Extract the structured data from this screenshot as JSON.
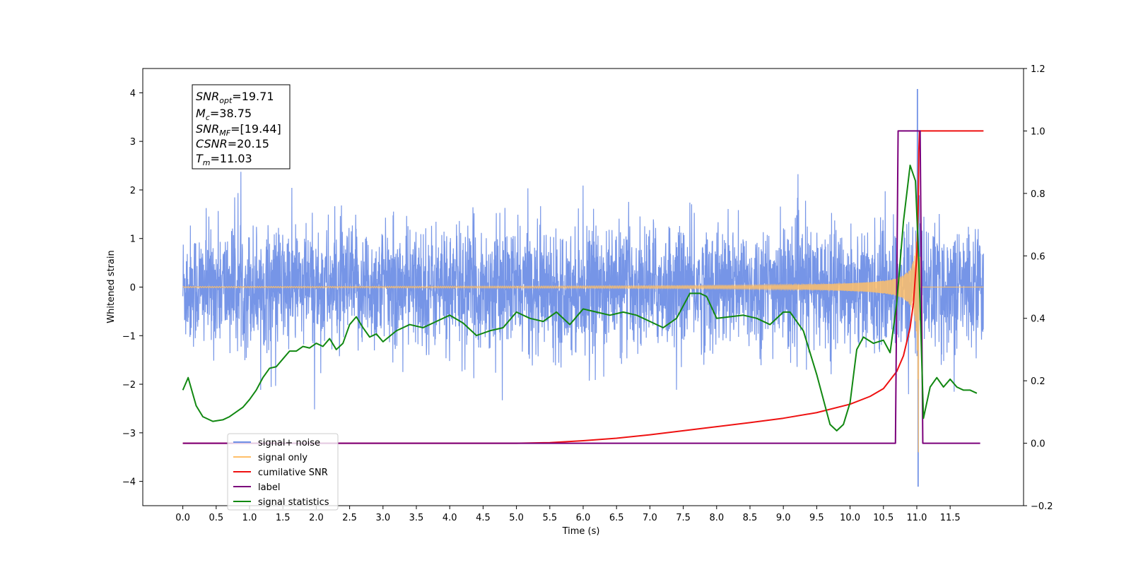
{
  "chart_data": {
    "type": "line",
    "xlabel": "Time (s)",
    "ylabel": "Whitened strain",
    "xlim": [
      -0.6,
      12.6
    ],
    "ylim_left": [
      -4.5,
      4.5
    ],
    "ylim_right": [
      -0.2,
      1.2
    ],
    "x_ticks": [
      0.0,
      0.5,
      1.0,
      1.5,
      2.0,
      2.5,
      3.0,
      3.5,
      4.0,
      4.5,
      5.0,
      5.5,
      6.0,
      6.5,
      7.0,
      7.5,
      8.0,
      8.5,
      9.0,
      9.5,
      10.0,
      10.5,
      11.0,
      11.5
    ],
    "x_tick_labels": [
      "0.0",
      "0.5",
      "1.0",
      "1.5",
      "2.0",
      "2.5",
      "3.0",
      "3.5",
      "4.0",
      "4.5",
      "5.0",
      "5.5",
      "6.0",
      "6.5",
      "7.0",
      "7.5",
      "8.0",
      "8.5",
      "9.0",
      "9.5",
      "10.0",
      "10.5",
      "11.0",
      "11.5"
    ],
    "y_left_ticks": [
      -4,
      -3,
      -2,
      -1,
      0,
      1,
      2,
      3,
      4
    ],
    "y_left_tick_labels": [
      "−4",
      "−3",
      "−2",
      "−1",
      "0",
      "1",
      "2",
      "3",
      "4"
    ],
    "y_right_ticks": [
      -0.2,
      0.0,
      0.2,
      0.4,
      0.6,
      0.8,
      1.0,
      1.2
    ],
    "y_right_tick_labels": [
      "−0.2",
      "0.0",
      "0.2",
      "0.4",
      "0.6",
      "0.8",
      "1.0",
      "1.2"
    ],
    "grid": false,
    "legend_position": "bottom-left",
    "series": [
      {
        "name": "signal+ noise",
        "axis": "left",
        "color": "#6f8fe6",
        "description_of_shape": "dense noise spanning about -1.5 to 1.5 with spikes up to 2.6 and down to -2.8, peak 4.07 and -4.1 near t=11.0",
        "x_range": [
          0.0,
          12.0
        ]
      },
      {
        "name": "signal only",
        "axis": "left",
        "color": "#ffbf69",
        "chirp": {
          "t_merge": 11.03,
          "peak_amplitude": 3.4,
          "x_range": [
            0.0,
            12.0
          ]
        }
      },
      {
        "name": "cumilative SNR",
        "axis": "right",
        "color": "#ee1111",
        "x": [
          0.0,
          1.0,
          2.0,
          3.0,
          4.0,
          5.0,
          5.5,
          6.0,
          6.5,
          7.0,
          7.5,
          8.0,
          8.5,
          9.0,
          9.5,
          10.0,
          10.3,
          10.5,
          10.7,
          10.8,
          10.9,
          10.95,
          11.0,
          11.02,
          11.03,
          11.04,
          12.0
        ],
        "values": [
          0.0,
          0.0,
          0.0,
          0.0,
          0.0,
          0.0,
          0.002,
          0.008,
          0.016,
          0.027,
          0.04,
          0.053,
          0.066,
          0.08,
          0.098,
          0.125,
          0.15,
          0.175,
          0.23,
          0.28,
          0.37,
          0.45,
          0.6,
          0.75,
          0.93,
          1.0,
          1.0
        ]
      },
      {
        "name": "label",
        "axis": "right",
        "color": "#7b007b",
        "x": [
          0.0,
          10.68,
          10.72,
          11.05,
          11.09,
          11.95
        ],
        "values": [
          0.0,
          0.0,
          1.0,
          1.0,
          0.0,
          0.0
        ]
      },
      {
        "name": "signal statistics",
        "axis": "right",
        "color": "#118811",
        "x": [
          0.0,
          0.08,
          0.2,
          0.3,
          0.45,
          0.6,
          0.7,
          0.8,
          0.9,
          1.0,
          1.1,
          1.2,
          1.3,
          1.4,
          1.5,
          1.6,
          1.7,
          1.8,
          1.9,
          2.0,
          2.1,
          2.2,
          2.3,
          2.4,
          2.5,
          2.6,
          2.7,
          2.8,
          2.9,
          3.0,
          3.2,
          3.4,
          3.6,
          3.8,
          4.0,
          4.2,
          4.4,
          4.6,
          4.8,
          5.0,
          5.2,
          5.4,
          5.6,
          5.8,
          6.0,
          6.2,
          6.4,
          6.6,
          6.8,
          7.0,
          7.2,
          7.4,
          7.6,
          7.75,
          7.85,
          8.0,
          8.2,
          8.4,
          8.6,
          8.8,
          9.0,
          9.1,
          9.3,
          9.5,
          9.7,
          9.8,
          9.9,
          10.0,
          10.1,
          10.2,
          10.35,
          10.5,
          10.6,
          10.7,
          10.8,
          10.9,
          10.98,
          11.03,
          11.1,
          11.2,
          11.3,
          11.4,
          11.5,
          11.6,
          11.7,
          11.8,
          11.9
        ],
        "values": [
          0.17,
          0.21,
          0.12,
          0.085,
          0.07,
          0.075,
          0.085,
          0.1,
          0.115,
          0.14,
          0.17,
          0.21,
          0.24,
          0.245,
          0.27,
          0.295,
          0.295,
          0.31,
          0.305,
          0.32,
          0.31,
          0.335,
          0.3,
          0.32,
          0.38,
          0.405,
          0.37,
          0.34,
          0.35,
          0.325,
          0.36,
          0.38,
          0.37,
          0.39,
          0.41,
          0.385,
          0.345,
          0.36,
          0.37,
          0.42,
          0.4,
          0.39,
          0.42,
          0.38,
          0.43,
          0.42,
          0.41,
          0.42,
          0.41,
          0.39,
          0.37,
          0.4,
          0.48,
          0.48,
          0.47,
          0.4,
          0.405,
          0.41,
          0.4,
          0.38,
          0.42,
          0.42,
          0.36,
          0.22,
          0.06,
          0.04,
          0.06,
          0.13,
          0.3,
          0.34,
          0.32,
          0.33,
          0.29,
          0.45,
          0.71,
          0.89,
          0.84,
          0.58,
          0.08,
          0.18,
          0.21,
          0.18,
          0.205,
          0.18,
          0.17,
          0.17,
          0.16
        ]
      }
    ],
    "annotation_box": {
      "lines": [
        {
          "label": "SNR",
          "subscript": "opt",
          "value": "=19.71"
        },
        {
          "label": "M",
          "subscript": "c",
          "value": "=38.75"
        },
        {
          "label": "SNR",
          "subscript": "MF",
          "value": "=[19.44]"
        },
        {
          "label": "CSNR",
          "subscript": "",
          "value": "=20.15"
        },
        {
          "label": "T",
          "subscript": "m",
          "value": "=11.03"
        }
      ]
    },
    "legend_entries": [
      {
        "text": "signal+ noise",
        "color": "#6f8fe6"
      },
      {
        "text": "signal only",
        "color": "#ffbf69"
      },
      {
        "text": "cumilative SNR",
        "color": "#ee1111"
      },
      {
        "text": "label",
        "color": "#7b007b"
      },
      {
        "text": "signal statistics",
        "color": "#118811"
      }
    ]
  }
}
